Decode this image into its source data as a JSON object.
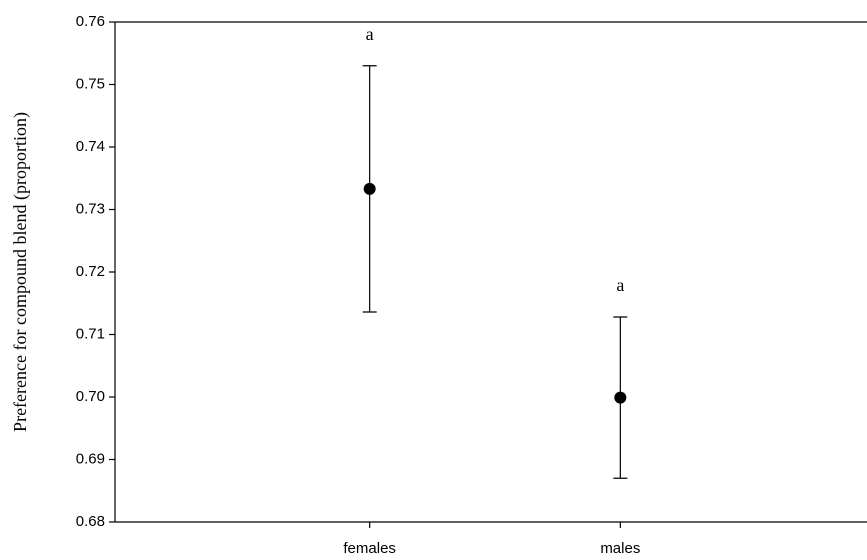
{
  "chart_data": {
    "type": "errorbar",
    "y_label": "Preference for compound blend (proportion)",
    "categories": [
      "females",
      "males"
    ],
    "values": [
      0.7333,
      0.6999
    ],
    "errors": [
      0.0197,
      0.0129
    ],
    "annotations": [
      "a",
      "a"
    ],
    "color": "#000000",
    "ylim": [
      0.68,
      0.76
    ],
    "yticks": [
      0.68,
      0.69,
      {
        "value": 0.7,
        "label": "0.70"
      },
      0.71,
      0.72,
      0.73,
      0.74,
      0.75,
      0.76
    ],
    "grid": false
  }
}
